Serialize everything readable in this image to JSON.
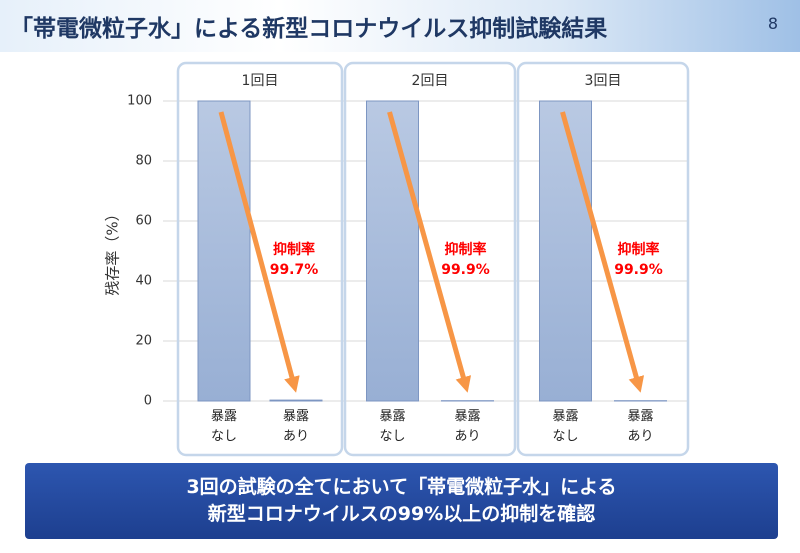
{
  "header": {
    "title": "「帯電微粒子水」による新型コロナウイルス抑制試験結果",
    "page": "8"
  },
  "chart_data": {
    "type": "bar",
    "y_label": "残存率（%）",
    "ylim": [
      0,
      100
    ],
    "yticks": [
      0,
      20,
      40,
      60,
      80,
      100
    ],
    "grid": true,
    "color": "#a7bad9",
    "arrow_color": "#f79646",
    "annotation_color": "#ff0000",
    "panels": [
      {
        "title": "1回目",
        "categories": [
          "暴露\nなし",
          "暴露\nあり"
        ],
        "values": [
          100,
          0.3
        ],
        "annotation": [
          "抑制率",
          "99.7%"
        ]
      },
      {
        "title": "2回目",
        "categories": [
          "暴露\nなし",
          "暴露\nあり"
        ],
        "values": [
          100,
          0.1
        ],
        "annotation": [
          "抑制率",
          "99.9%"
        ]
      },
      {
        "title": "3回目",
        "categories": [
          "暴露\nなし",
          "暴露\nあり"
        ],
        "values": [
          100,
          0.1
        ],
        "annotation": [
          "抑制率",
          "99.9%"
        ]
      }
    ]
  },
  "conclusion": [
    "3回の試験の全てにおいて「帯電微粒子水」による",
    "新型コロナウイルスの99%以上の抑制を確認"
  ]
}
